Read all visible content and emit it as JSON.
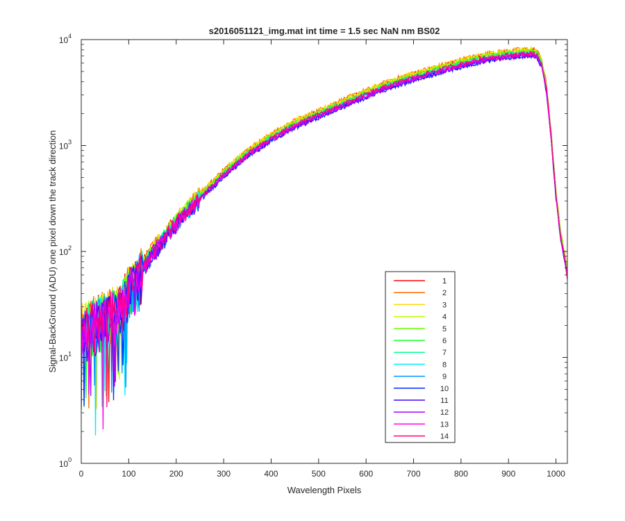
{
  "chart_data": {
    "type": "line",
    "title": "s2016051121_img.mat int time = 1.5 sec  NaN nm BS02",
    "xlabel": "Wavelength Pixels",
    "ylabel": "Signal-BackGround (ADU) one pixel down the track direction",
    "xscale": "linear",
    "yscale": "log",
    "xlim": [
      0,
      1024
    ],
    "ylim": [
      1,
      10000
    ],
    "grid": false,
    "legend_position": "lower-right (inside axes)",
    "xticks": [
      "0",
      "100",
      "200",
      "300",
      "400",
      "500",
      "600",
      "700",
      "800",
      "900",
      "1000"
    ],
    "yticks": [
      {
        "base": "10",
        "exp": "0"
      },
      {
        "base": "10",
        "exp": "1"
      },
      {
        "base": "10",
        "exp": "2"
      },
      {
        "base": "10",
        "exp": "3"
      },
      {
        "base": "10",
        "exp": "4"
      }
    ],
    "envelope_x": [
      0,
      20,
      40,
      60,
      80,
      100,
      120,
      150,
      200,
      250,
      300,
      350,
      400,
      450,
      500,
      550,
      600,
      650,
      700,
      750,
      800,
      850,
      900,
      930,
      950,
      960,
      970,
      980,
      990,
      1000,
      1010,
      1020,
      1024
    ],
    "envelope_y": [
      20,
      22,
      25,
      28,
      30,
      45,
      60,
      100,
      190,
      330,
      550,
      850,
      1200,
      1600,
      2000,
      2500,
      3100,
      3800,
      4500,
      5200,
      6000,
      6800,
      7300,
      7500,
      7600,
      7300,
      6000,
      3500,
      1200,
      350,
      140,
      80,
      60
    ],
    "series": [
      {
        "name": "1",
        "color": "#ff0000",
        "scale": 1.05
      },
      {
        "name": "2",
        "color": "#ff6a00",
        "scale": 1.08
      },
      {
        "name": "3",
        "color": "#ffd500",
        "scale": 1.07
      },
      {
        "name": "4",
        "color": "#c0ff00",
        "scale": 1.04
      },
      {
        "name": "5",
        "color": "#6aff00",
        "scale": 1.02
      },
      {
        "name": "6",
        "color": "#15ff2a",
        "scale": 1.0
      },
      {
        "name": "7",
        "color": "#00ff95",
        "scale": 0.99
      },
      {
        "name": "8",
        "color": "#00eaff",
        "scale": 0.97
      },
      {
        "name": "9",
        "color": "#0095ff",
        "scale": 0.95
      },
      {
        "name": "10",
        "color": "#002aff",
        "scale": 0.92
      },
      {
        "name": "11",
        "color": "#4000ff",
        "scale": 0.93
      },
      {
        "name": "12",
        "color": "#aa00ff",
        "scale": 0.94
      },
      {
        "name": "13",
        "color": "#ff00ea",
        "scale": 0.96
      },
      {
        "name": "14",
        "color": "#ff0080",
        "scale": 0.98
      }
    ]
  }
}
